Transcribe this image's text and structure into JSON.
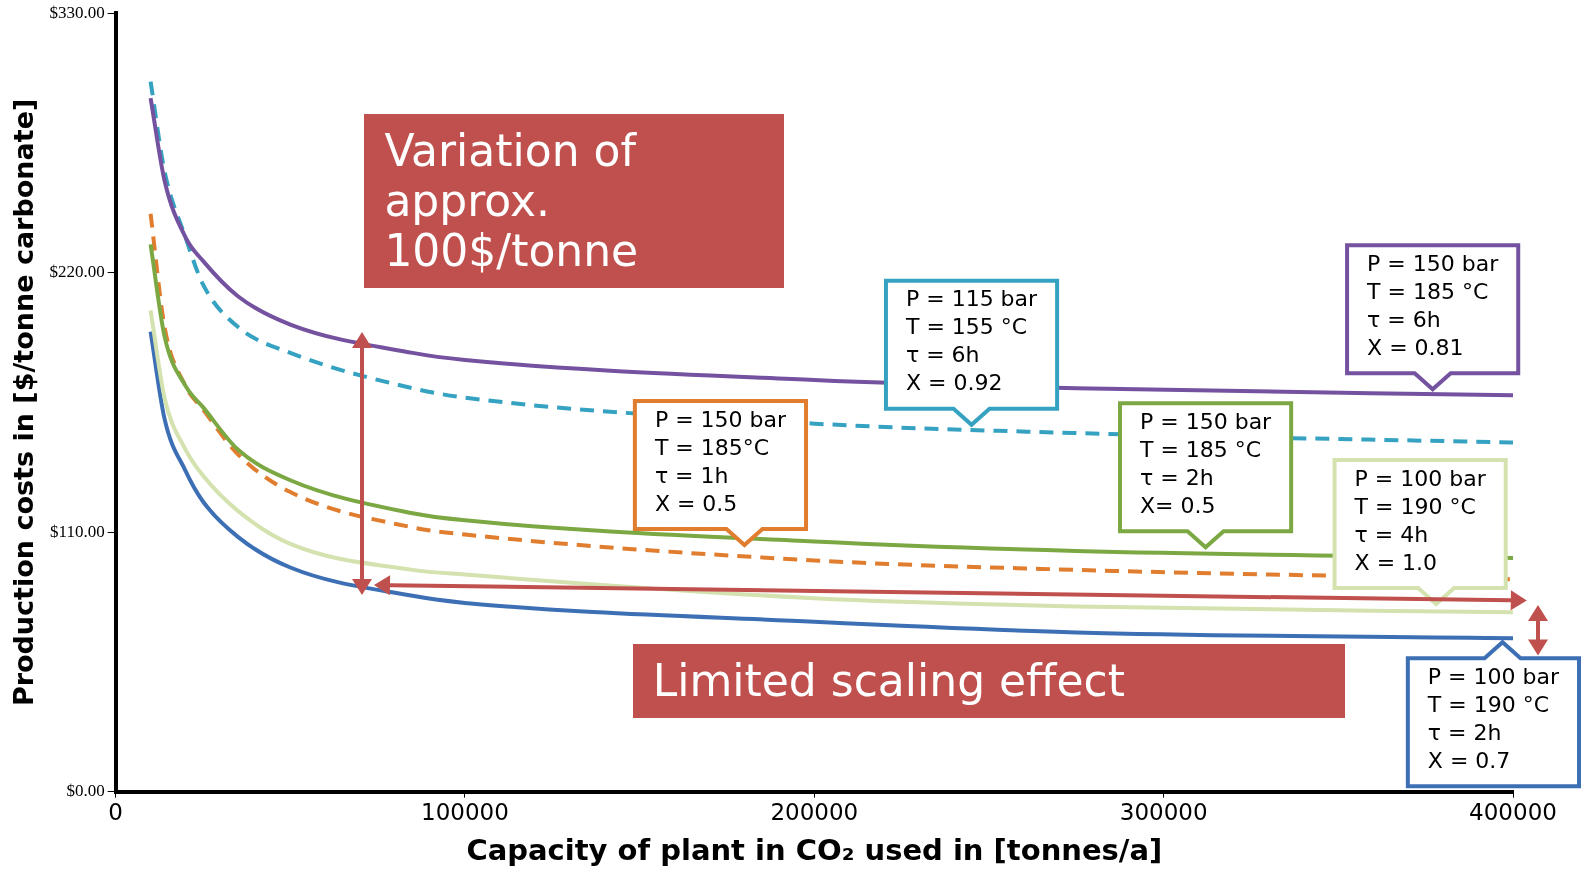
{
  "chart_data": {
    "type": "line",
    "xlabel": "Capacity of plant in CO₂ used in [tonnes/a]",
    "ylabel": "Production costs in [$/tonne carbonate]",
    "x": [
      10000,
      14000,
      20000,
      25000,
      35000,
      50000,
      85000,
      100000,
      200000,
      275000,
      400000
    ],
    "series": [
      {
        "color": "#7452a0",
        "values": [
          294,
          259,
          235,
          225,
          210,
          198,
          186,
          183,
          174.5,
          171,
          168
        ]
      },
      {
        "color": "#35a2c2",
        "line_style": "dashed",
        "values": [
          301,
          263,
          235,
          215,
          197,
          186,
          171,
          167,
          156,
          152,
          148
        ]
      },
      {
        "color": "#7ba843",
        "values": [
          232,
          193,
          172,
          163,
          145,
          132,
          118,
          115,
          106,
          102,
          99
        ]
      },
      {
        "color": "#e07d2e",
        "line_style": "dashed",
        "values": [
          245,
          197,
          172,
          162,
          143,
          127,
          112,
          109,
          98,
          94,
          90
        ]
      },
      {
        "color": "#d3e2ae",
        "values": [
          204,
          167,
          145,
          134,
          119,
          105,
          94,
          92,
          82,
          78.5,
          76
        ]
      },
      {
        "color": "#3d6fb5",
        "values": [
          195,
          158,
          136,
          123,
          108,
          95,
          83,
          80,
          72,
          67.5,
          65
        ]
      }
    ],
    "xlim": [
      0,
      400000
    ],
    "xticks": [
      0,
      100000,
      200000,
      300000,
      400000
    ],
    "ylim": [
      0,
      330
    ],
    "yticks": [
      {
        "value": 0,
        "label": "$0.00"
      },
      {
        "value": 110,
        "label": "$110.00"
      },
      {
        "value": 220,
        "label": "$220.00"
      },
      {
        "value": 330,
        "label": "$330.00"
      }
    ],
    "grid": false,
    "legend": false,
    "marker": "none",
    "line_style": "solid",
    "annotations": [
      "Variation of approx. 100$/tonne",
      "Limited scaling effect",
      {
        "text": "P = 150 bar\nT = 185 °C\nτ = 6h\nX = 0.81",
        "x": 377000,
        "y": 168
      },
      {
        "text": "P = 115 bar\nT = 155 °C\nτ = 6h\nX = 0.92",
        "x": 245000,
        "y": 153
      },
      {
        "text": "P = 150 bar\nT = 185°C\nτ = 1h\nX = 0.5",
        "x": 180000,
        "y": 102
      },
      {
        "text": "P = 150 bar\nT = 185 °C\nτ = 2h\nX= 0.5",
        "x": 312000,
        "y": 101
      },
      {
        "text": "P = 100 bar\nT = 190 °C\nτ = 4h\nX = 1.0",
        "x": 378000,
        "y": 77
      },
      {
        "text": "P = 100 bar\nT = 190 °C\nτ = 2h\nX = 0.7",
        "x": 397000,
        "y": 65
      }
    ]
  }
}
